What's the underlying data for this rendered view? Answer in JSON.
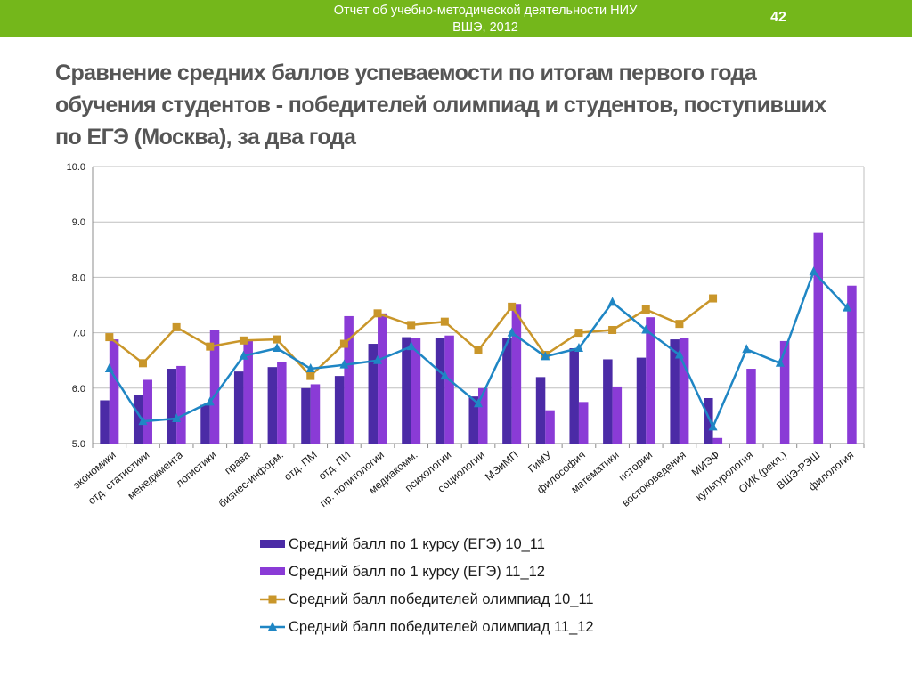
{
  "header": {
    "report_title": "Отчет об учебно-методической деятельности НИУ ВШЭ, 2012",
    "page_number": "42",
    "bar_color": "#74b71b"
  },
  "slide": {
    "title": "Сравнение средних баллов успеваемости по итогам первого года обучения студентов - победителей олимпиад и студентов, поступивших по ЕГЭ (Москва), за два года"
  },
  "chart_data": {
    "type": "bar",
    "title": "",
    "xlabel": "",
    "ylabel": "",
    "ylim": [
      5.0,
      10.0
    ],
    "yticks": [
      "5.0",
      "6.0",
      "7.0",
      "8.0",
      "9.0",
      "10.0"
    ],
    "grid": true,
    "legend_position": "bottom",
    "categories": [
      "экономики",
      "отд. статистики",
      "менеджмента",
      "логистики",
      "права",
      "бизнес-информ.",
      "отд. ПМ",
      "отд. ПИ",
      "пр. политологии",
      "медиакомм.",
      "психологии",
      "социологии",
      "МЭиМП",
      "ГиМУ",
      "философия",
      "математики",
      "истории",
      "востоковедения",
      "МИЭФ",
      "культурология",
      "ОИК (рекл.)",
      "ВШЭ-РЭШ",
      "филология"
    ],
    "series": [
      {
        "name": "Средний балл по 1 курсу (ЕГЭ) 10_11",
        "kind": "bar",
        "color": "#4b2ba6",
        "values": [
          5.78,
          5.88,
          6.35,
          5.7,
          6.3,
          6.38,
          6.0,
          6.22,
          6.8,
          6.92,
          6.9,
          5.85,
          6.9,
          6.2,
          6.72,
          6.52,
          6.55,
          6.88,
          5.82,
          null,
          null,
          null,
          null
        ]
      },
      {
        "name": "Средний балл по 1 курсу (ЕГЭ) 11_12",
        "kind": "bar",
        "color": "#8a3bd6",
        "values": [
          6.88,
          6.15,
          6.4,
          7.05,
          6.88,
          6.47,
          6.07,
          7.3,
          7.35,
          6.9,
          6.95,
          6.0,
          7.52,
          5.6,
          5.75,
          6.03,
          7.28,
          6.9,
          5.1,
          6.35,
          6.85,
          8.8,
          7.85
        ]
      },
      {
        "name": "Средний балл победителей олимпиад 10_11",
        "kind": "line",
        "marker": "square",
        "color": "#c9962a",
        "values": [
          6.92,
          6.45,
          7.1,
          6.75,
          6.86,
          6.88,
          6.22,
          6.8,
          7.35,
          7.14,
          7.2,
          6.68,
          7.47,
          6.6,
          7.0,
          7.05,
          7.42,
          7.16,
          7.62,
          null,
          null,
          null,
          null
        ]
      },
      {
        "name": "Средний балл победителей олимпиад 11_12",
        "kind": "line",
        "marker": "triangle",
        "color": "#1f86c4",
        "values": [
          6.35,
          5.4,
          5.45,
          5.75,
          6.58,
          6.72,
          6.35,
          6.42,
          6.5,
          6.75,
          6.22,
          5.72,
          7.0,
          6.57,
          6.72,
          7.55,
          7.05,
          6.6,
          5.3,
          6.7,
          6.45,
          8.1,
          7.45
        ]
      }
    ]
  }
}
